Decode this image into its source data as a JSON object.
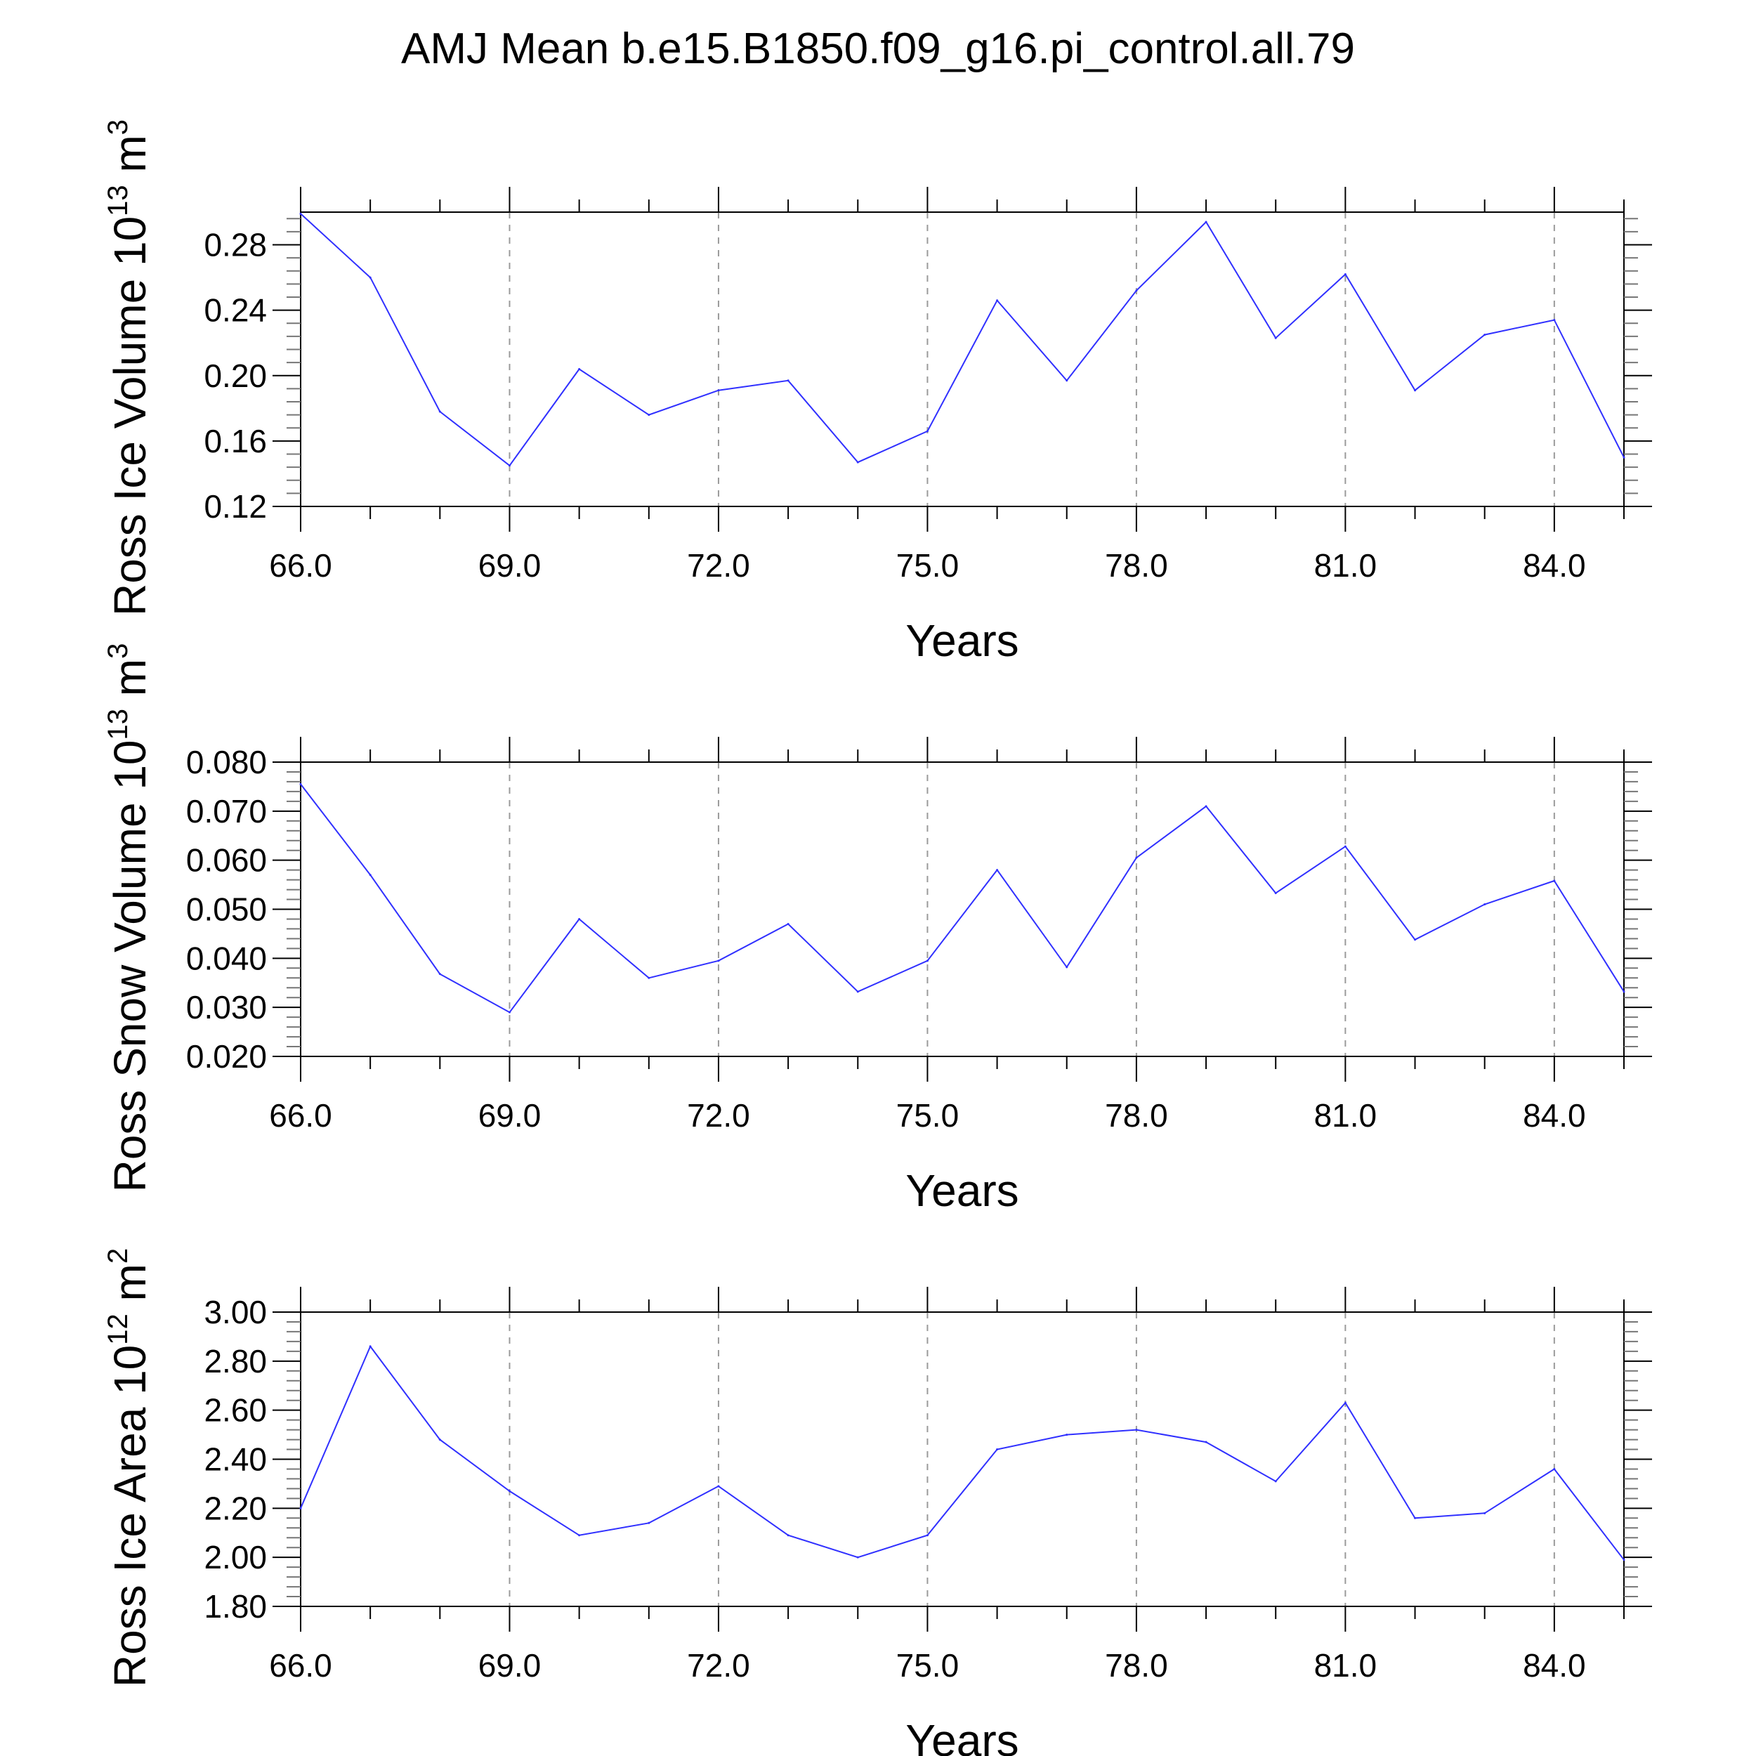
{
  "title": "AMJ Mean b.e15.B1850.f09_g16.pi_control.all.79",
  "chart_data": [
    {
      "type": "line",
      "title": "",
      "xlabel": "Years",
      "ylabel": "Ross Ice Volume 10",
      "ylabel_exp": "13",
      "ylabel_unit": "m",
      "ylabel_unit_exp": "3",
      "xlim": [
        66,
        85
      ],
      "ylim": [
        0.12,
        0.3
      ],
      "x_ticks": [
        "66.0",
        "69.0",
        "72.0",
        "75.0",
        "78.0",
        "81.0",
        "84.0"
      ],
      "y_ticks": [
        "0.12",
        "0.16",
        "0.20",
        "0.24",
        "0.28"
      ],
      "grid": "vertical dashed at major x ticks",
      "line_color": "#3030ff",
      "x": [
        66,
        67,
        68,
        69,
        70,
        71,
        72,
        73,
        74,
        75,
        76,
        77,
        78,
        79,
        80,
        81,
        82,
        83,
        84,
        85
      ],
      "values": [
        0.299,
        0.26,
        0.178,
        0.145,
        0.204,
        0.176,
        0.191,
        0.197,
        0.147,
        0.166,
        0.246,
        0.197,
        0.252,
        0.294,
        0.223,
        0.262,
        0.191,
        0.225,
        0.234,
        0.15
      ]
    },
    {
      "type": "line",
      "title": "",
      "xlabel": "Years",
      "ylabel": "Ross Snow Volume 10",
      "ylabel_exp": "13",
      "ylabel_unit": "m",
      "ylabel_unit_exp": "3",
      "xlim": [
        66,
        85
      ],
      "ylim": [
        0.02,
        0.08
      ],
      "x_ticks": [
        "66.0",
        "69.0",
        "72.0",
        "75.0",
        "78.0",
        "81.0",
        "84.0"
      ],
      "y_ticks": [
        "0.020",
        "0.030",
        "0.040",
        "0.050",
        "0.060",
        "0.070",
        "0.080"
      ],
      "grid": "vertical dashed at major x ticks",
      "line_color": "#3030ff",
      "x": [
        66,
        67,
        68,
        69,
        70,
        71,
        72,
        73,
        74,
        75,
        76,
        77,
        78,
        79,
        80,
        81,
        82,
        83,
        84,
        85
      ],
      "values": [
        0.0755,
        0.057,
        0.0368,
        0.029,
        0.048,
        0.036,
        0.0395,
        0.047,
        0.0332,
        0.0395,
        0.058,
        0.0382,
        0.0605,
        0.071,
        0.0533,
        0.0628,
        0.0438,
        0.051,
        0.0558,
        0.0332
      ]
    },
    {
      "type": "line",
      "title": "",
      "xlabel": "Years",
      "ylabel": "Ross Ice Area 10",
      "ylabel_exp": "12",
      "ylabel_unit": "m",
      "ylabel_unit_exp": "2",
      "xlim": [
        66,
        85
      ],
      "ylim": [
        1.8,
        3.0
      ],
      "x_ticks": [
        "66.0",
        "69.0",
        "72.0",
        "75.0",
        "78.0",
        "81.0",
        "84.0"
      ],
      "y_ticks": [
        "1.80",
        "2.00",
        "2.20",
        "2.40",
        "2.60",
        "2.80",
        "3.00"
      ],
      "grid": "vertical dashed at major x ticks",
      "line_color": "#3030ff",
      "x": [
        66,
        67,
        68,
        69,
        70,
        71,
        72,
        73,
        74,
        75,
        76,
        77,
        78,
        79,
        80,
        81,
        82,
        83,
        84,
        85
      ],
      "values": [
        2.2,
        2.86,
        2.48,
        2.27,
        2.09,
        2.14,
        2.29,
        2.09,
        2.0,
        2.09,
        2.44,
        2.5,
        2.52,
        2.47,
        2.31,
        2.63,
        2.16,
        2.18,
        2.36,
        1.99
      ]
    }
  ]
}
